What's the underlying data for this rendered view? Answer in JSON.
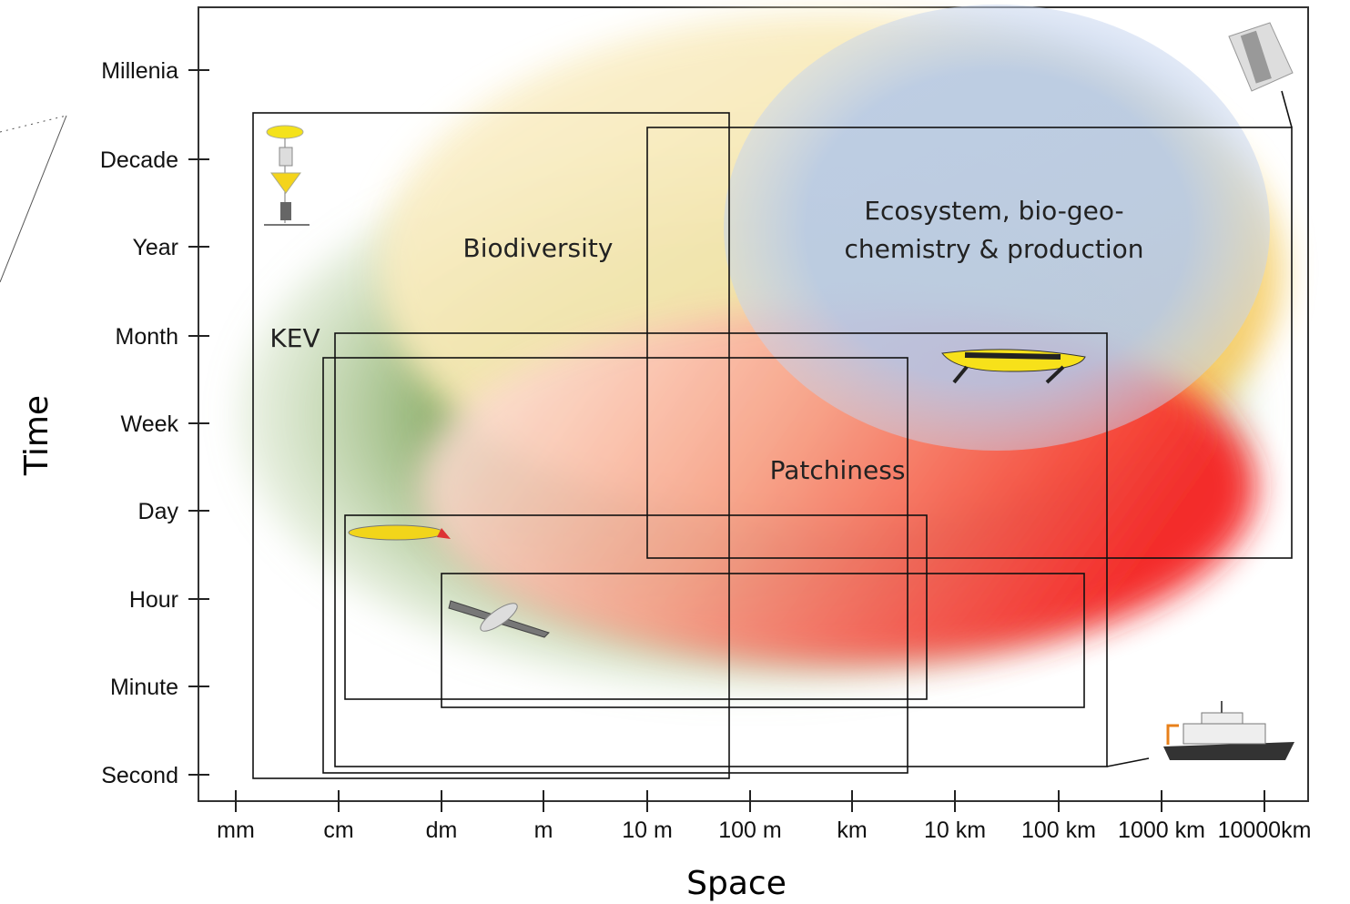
{
  "axes": {
    "x": {
      "label": "Space",
      "ticks": [
        "mm",
        "cm",
        "dm",
        "m",
        "10 m",
        "100 m",
        "km",
        "10 km",
        "100 km",
        "1000 km",
        "10000km"
      ]
    },
    "y": {
      "label": "Time",
      "ticks": [
        "Millenia",
        "Decade",
        "Year",
        "Month",
        "Week",
        "Day",
        "Hour",
        "Minute",
        "Second"
      ]
    }
  },
  "regions": {
    "biodiversity": "Biodiversity",
    "ecosystem": [
      "Ecosystem, bio-geo-",
      "chemistry & production"
    ],
    "kev": "KEV",
    "patchiness": "Patchiness"
  }
}
